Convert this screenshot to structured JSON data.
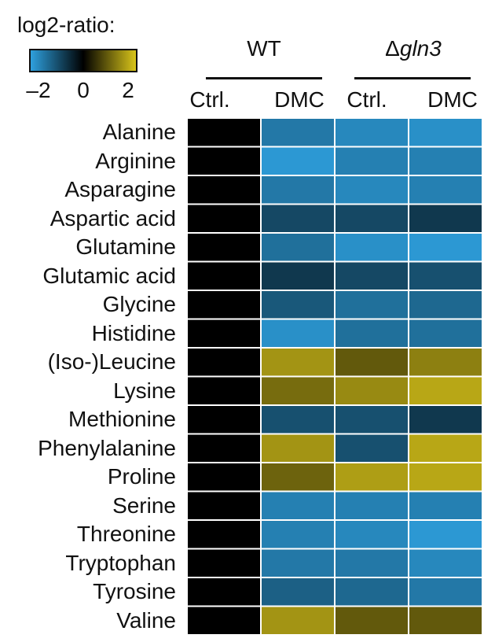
{
  "chart_data": {
    "type": "heatmap",
    "title": "",
    "legend": {
      "title": "log2-ratio:",
      "min": -2,
      "max": 2,
      "ticks": [
        "–2",
        "0",
        "2"
      ],
      "colors": {
        "low": "#2ea0de",
        "mid": "#000000",
        "high": "#d9c51a"
      }
    },
    "groups": [
      {
        "name": "WT",
        "name_italic": "",
        "columns": [
          "Ctrl.",
          "DMC"
        ]
      },
      {
        "name": "Δ",
        "name_italic": "gln3",
        "columns": [
          "Ctrl.",
          "DMC"
        ]
      }
    ],
    "columns": [
      "Ctrl.",
      "DMC",
      "Ctrl.",
      "DMC"
    ],
    "rows": [
      "Alanine",
      "Arginine",
      "Asparagine",
      "Aspartic acid",
      "Glutamine",
      "Glutamic acid",
      "Glycine",
      "Histidine",
      "(Iso-)Leucine",
      "Lysine",
      "Methionine",
      "Phenylalanine",
      "Proline",
      "Serine",
      "Threonine",
      "Tryptophan",
      "Tyrosine",
      "Valine"
    ],
    "values": [
      [
        0,
        -1.5,
        -1.7,
        -1.8
      ],
      [
        0,
        -1.9,
        -1.6,
        -1.6
      ],
      [
        0,
        -1.5,
        -1.7,
        -1.6
      ],
      [
        0,
        -0.9,
        -0.9,
        -0.7
      ],
      [
        0,
        -1.4,
        -1.8,
        -1.9
      ],
      [
        0,
        -0.7,
        -0.9,
        -1.0
      ],
      [
        0,
        -1.1,
        -1.4,
        -1.3
      ],
      [
        0,
        -1.8,
        -1.4,
        -1.4
      ],
      [
        0,
        1.5,
        0.9,
        1.3
      ],
      [
        0,
        1.1,
        1.4,
        1.7
      ],
      [
        0,
        -1.0,
        -1.0,
        -0.7
      ],
      [
        0,
        1.5,
        -1.0,
        1.7
      ],
      [
        0,
        1.0,
        1.6,
        1.7
      ],
      [
        0,
        -1.6,
        -1.6,
        -1.6
      ],
      [
        0,
        -1.6,
        -1.7,
        -1.9
      ],
      [
        0,
        -1.5,
        -1.5,
        -1.7
      ],
      [
        0,
        -1.2,
        -1.3,
        -1.5
      ],
      [
        0,
        1.5,
        0.9,
        0.9
      ]
    ]
  }
}
